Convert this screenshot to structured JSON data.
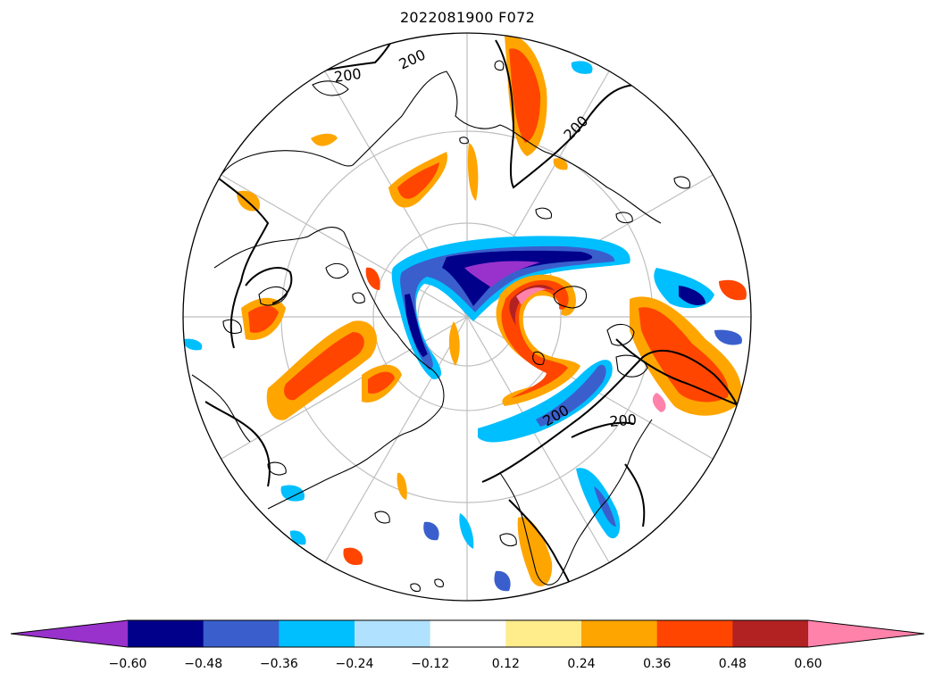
{
  "title": "2022081900 F072",
  "contour_label_value": "200",
  "colorbar": {
    "levels": [
      "-0.60",
      "-0.48",
      "-0.36",
      "-0.24",
      "-0.12",
      "0.12",
      "0.24",
      "0.36",
      "0.48",
      "0.60"
    ],
    "colors": [
      "#9932cc",
      "#00008b",
      "#3a5fcd",
      "#00bfff",
      "#b0e2ff",
      "#ffffff",
      "#ffec8b",
      "#ffa500",
      "#ff4500",
      "#b22222",
      "#ff82ab"
    ],
    "extend": "both"
  },
  "colors": {
    "coastline": "#000000",
    "graticule": "#bfbfbf",
    "contour": "#000000"
  }
}
